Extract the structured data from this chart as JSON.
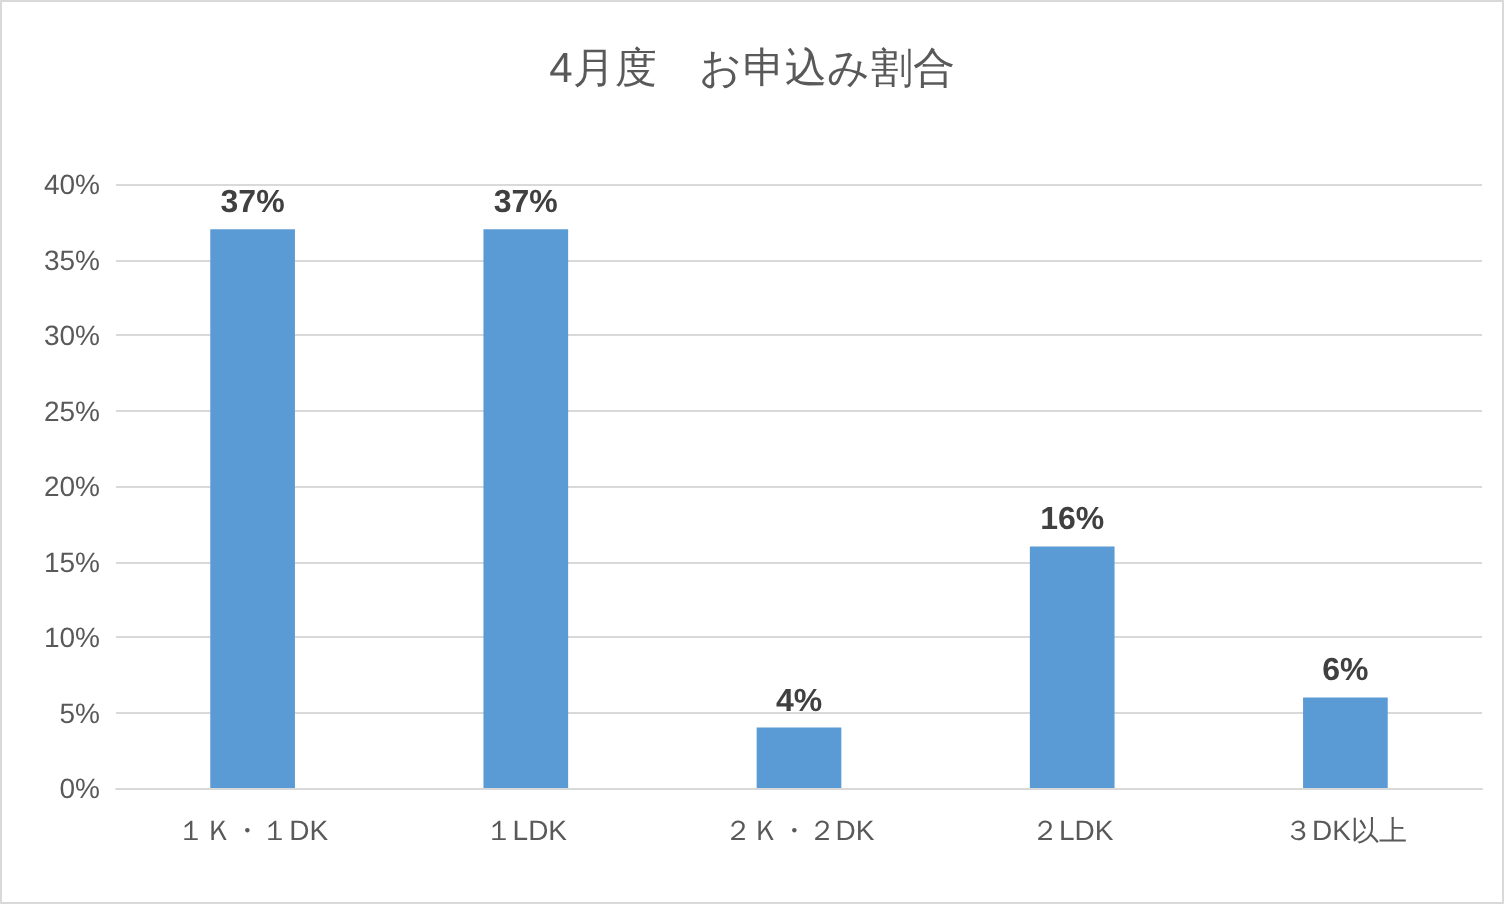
{
  "chart_data": {
    "type": "bar",
    "title": "4月度　お申込み割合",
    "categories": [
      "１Ｋ・１DK",
      "１LDK",
      "２Ｋ・２DK",
      "２LDK",
      "３DK以上"
    ],
    "values": [
      37,
      37,
      4,
      16,
      6
    ],
    "value_labels": [
      "37%",
      "37%",
      "4%",
      "16%",
      "6%"
    ],
    "color": "#5b9bd5",
    "ylim": [
      0,
      40
    ],
    "yticks": [
      {
        "value": 0,
        "label": "0%"
      },
      {
        "value": 5,
        "label": "5%"
      },
      {
        "value": 10,
        "label": "10%"
      },
      {
        "value": 15,
        "label": "15%"
      },
      {
        "value": 20,
        "label": "20%"
      },
      {
        "value": 25,
        "label": "25%"
      },
      {
        "value": 30,
        "label": "30%"
      },
      {
        "value": 35,
        "label": "35%"
      },
      {
        "value": 40,
        "label": "40%"
      }
    ],
    "grid": "y"
  }
}
